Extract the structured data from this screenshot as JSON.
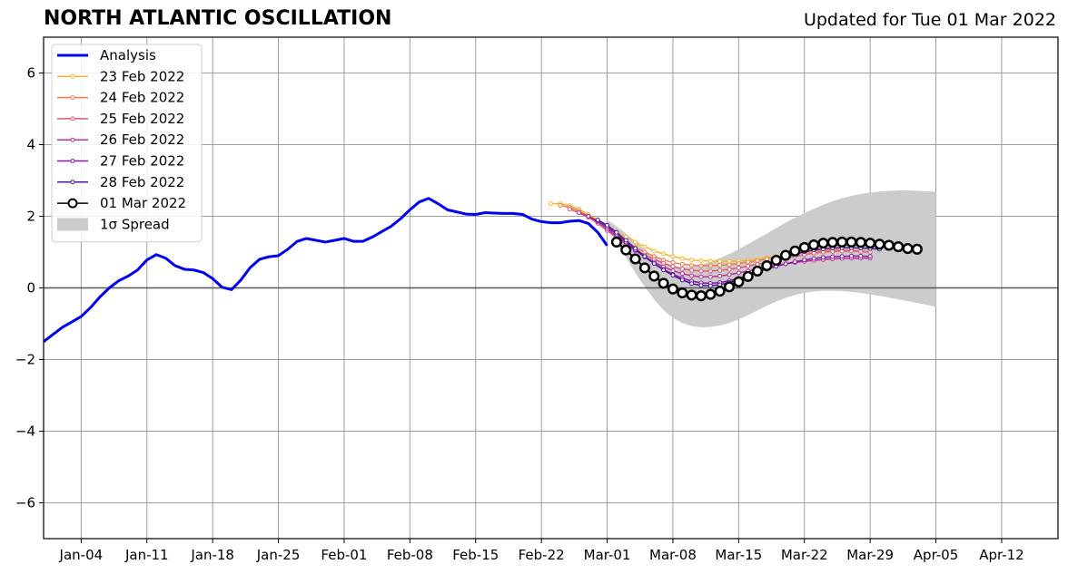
{
  "chart_data": {
    "type": "line",
    "title": "NORTH ATLANTIC OSCILLATION",
    "subtitle": "Updated for Tue 01 Mar 2022",
    "xlabel": "",
    "ylabel": "",
    "xlim": [
      "2021-12-31",
      "2022-04-18"
    ],
    "ylim": [
      -7,
      7
    ],
    "x_ticks": [
      "2022-01-04",
      "2022-01-11",
      "2022-01-18",
      "2022-01-25",
      "2022-02-01",
      "2022-02-08",
      "2022-02-15",
      "2022-02-22",
      "2022-03-01",
      "2022-03-08",
      "2022-03-15",
      "2022-03-22",
      "2022-03-29",
      "2022-04-05",
      "2022-04-12"
    ],
    "x_tick_labels": [
      "Jan-04",
      "Jan-11",
      "Jan-18",
      "Jan-25",
      "Feb-01",
      "Feb-08",
      "Feb-15",
      "Feb-22",
      "Mar-01",
      "Mar-08",
      "Mar-15",
      "Mar-22",
      "Mar-29",
      "Apr-05",
      "Apr-12"
    ],
    "y_ticks": [
      -6,
      -4,
      -2,
      0,
      2,
      4,
      6
    ],
    "y_tick_labels": [
      "−6",
      "−4",
      "−2",
      "0",
      "2",
      "4",
      "6"
    ],
    "grid": true,
    "zero_line": true,
    "legend_position": "top-left",
    "colors": {
      "analysis": "#0000ee",
      "spread": "#cccccc",
      "zero_line": "#555555",
      "grid": "#a0a0a0"
    },
    "analysis": {
      "name": "Analysis",
      "start": "2021-12-31",
      "values": [
        -1.5,
        -1.3,
        -1.1,
        -0.95,
        -0.8,
        -0.55,
        -0.25,
        0.0,
        0.2,
        0.33,
        0.5,
        0.78,
        0.93,
        0.83,
        0.62,
        0.52,
        0.5,
        0.43,
        0.26,
        0.02,
        -0.05,
        0.22,
        0.57,
        0.8,
        0.87,
        0.9,
        1.08,
        1.3,
        1.38,
        1.33,
        1.28,
        1.33,
        1.38,
        1.3,
        1.3,
        1.42,
        1.57,
        1.72,
        1.93,
        2.18,
        2.4,
        2.5,
        2.35,
        2.18,
        2.12,
        2.06,
        2.05,
        2.1,
        2.09,
        2.08,
        2.08,
        2.05,
        1.92,
        1.85,
        1.82,
        1.82,
        1.86,
        1.88,
        1.8,
        1.55,
        1.18
      ]
    },
    "forecasts": [
      {
        "name": "23 Feb 2022",
        "color": "#f5b52b",
        "start": "2022-02-23",
        "values": [
          2.35,
          2.35,
          2.3,
          2.2,
          2.05,
          1.9,
          1.73,
          1.57,
          1.42,
          1.28,
          1.15,
          1.03,
          0.95,
          0.88,
          0.82,
          0.78,
          0.76,
          0.75,
          0.74,
          0.74,
          0.75,
          0.77,
          0.8,
          0.84,
          0.88,
          0.92,
          0.96,
          1.0,
          1.03,
          1.05,
          1.06,
          1.06,
          1.05,
          1.03,
          1.0
        ]
      },
      {
        "name": "24 Feb 2022",
        "color": "#ee7b4b",
        "start": "2022-02-24",
        "values": [
          2.3,
          2.25,
          2.15,
          2.0,
          1.82,
          1.63,
          1.45,
          1.28,
          1.13,
          1.0,
          0.88,
          0.78,
          0.71,
          0.66,
          0.63,
          0.62,
          0.62,
          0.63,
          0.65,
          0.68,
          0.72,
          0.76,
          0.81,
          0.86,
          0.91,
          0.95,
          0.99,
          1.02,
          1.04,
          1.05,
          1.05,
          1.04,
          1.02,
          1.0
        ]
      },
      {
        "name": "25 Feb 2022",
        "color": "#dc5b7a",
        "start": "2022-02-25",
        "values": [
          2.2,
          2.1,
          1.97,
          1.8,
          1.6,
          1.4,
          1.22,
          1.06,
          0.92,
          0.8,
          0.69,
          0.6,
          0.53,
          0.49,
          0.47,
          0.47,
          0.49,
          0.52,
          0.56,
          0.61,
          0.66,
          0.71,
          0.77,
          0.83,
          0.88,
          0.93,
          0.97,
          1.0,
          1.02,
          1.03,
          1.03,
          1.02,
          1.0
        ]
      },
      {
        "name": "26 Feb 2022",
        "color": "#b83297",
        "start": "2022-02-26",
        "values": [
          2.1,
          2.0,
          1.84,
          1.65,
          1.44,
          1.23,
          1.04,
          0.87,
          0.72,
          0.59,
          0.48,
          0.4,
          0.34,
          0.31,
          0.31,
          0.33,
          0.37,
          0.42,
          0.47,
          0.53,
          0.58,
          0.63,
          0.67,
          0.71,
          0.74,
          0.77,
          0.79,
          0.81,
          0.82,
          0.83,
          0.83,
          0.83
        ]
      },
      {
        "name": "27 Feb 2022",
        "color": "#8a16a6",
        "start": "2022-02-27",
        "values": [
          2.0,
          1.87,
          1.7,
          1.5,
          1.28,
          1.06,
          0.86,
          0.68,
          0.52,
          0.38,
          0.27,
          0.19,
          0.14,
          0.13,
          0.15,
          0.2,
          0.27,
          0.35,
          0.44,
          0.52,
          0.6,
          0.67,
          0.73,
          0.78,
          0.82,
          0.85,
          0.87,
          0.88,
          0.89,
          0.89,
          0.88
        ]
      },
      {
        "name": "28 Feb 2022",
        "color": "#4b1a9e",
        "start": "2022-02-28",
        "values": [
          1.9,
          1.75,
          1.55,
          1.33,
          1.1,
          0.88,
          0.68,
          0.5,
          0.35,
          0.22,
          0.12,
          0.07,
          0.06,
          0.09,
          0.15,
          0.24,
          0.36,
          0.49,
          0.62,
          0.74,
          0.85,
          0.94,
          1.01,
          1.06,
          1.09,
          1.11,
          1.12,
          1.12,
          1.11,
          1.1,
          1.08
        ]
      },
      {
        "name": "01 Mar 2022",
        "color": "#000000",
        "start": "2022-03-02",
        "values": [
          1.28,
          1.06,
          0.81,
          0.56,
          0.33,
          0.13,
          -0.03,
          -0.14,
          -0.2,
          -0.22,
          -0.18,
          -0.09,
          0.03,
          0.17,
          0.32,
          0.47,
          0.62,
          0.77,
          0.91,
          1.03,
          1.13,
          1.2,
          1.25,
          1.27,
          1.28,
          1.28,
          1.27,
          1.25,
          1.22,
          1.19,
          1.15,
          1.1,
          1.08
        ]
      }
    ],
    "spread": {
      "name": "1σ Spread",
      "start": "2022-03-01",
      "upper": [
        1.9,
        1.72,
        1.52,
        1.3,
        1.07,
        0.87,
        0.72,
        0.62,
        0.58,
        0.6,
        0.65,
        0.73,
        0.83,
        0.95,
        1.08,
        1.22,
        1.37,
        1.52,
        1.67,
        1.82,
        1.96,
        2.09,
        2.21,
        2.32,
        2.42,
        2.5,
        2.57,
        2.62,
        2.66,
        2.69,
        2.71,
        2.72,
        2.72,
        2.71,
        2.7,
        2.68
      ],
      "lower": [
        1.7,
        1.28,
        0.85,
        0.42,
        0.03,
        -0.32,
        -0.62,
        -0.84,
        -0.98,
        -1.07,
        -1.1,
        -1.09,
        -1.05,
        -0.98,
        -0.88,
        -0.76,
        -0.63,
        -0.5,
        -0.38,
        -0.28,
        -0.2,
        -0.14,
        -0.1,
        -0.08,
        -0.08,
        -0.09,
        -0.11,
        -0.14,
        -0.18,
        -0.22,
        -0.27,
        -0.32,
        -0.37,
        -0.42,
        -0.47,
        -0.53
      ]
    }
  }
}
